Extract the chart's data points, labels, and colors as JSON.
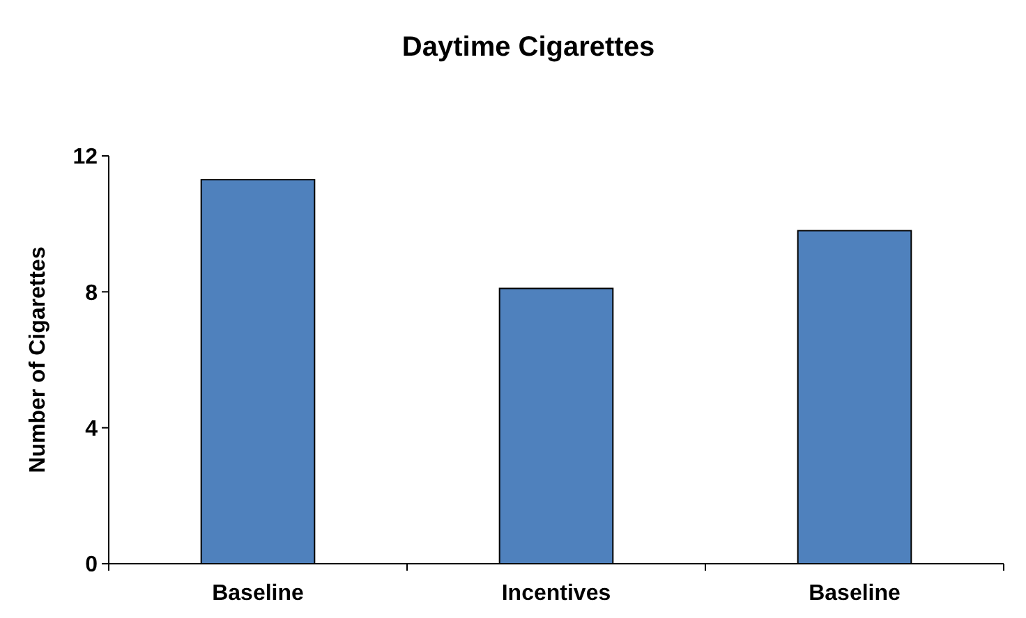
{
  "chart_data": {
    "type": "bar",
    "title": "Daytime Cigarettes",
    "ylabel": "Number of Cigarettes",
    "categories": [
      "Baseline",
      "Incentives",
      "Baseline"
    ],
    "values": [
      11.3,
      8.1,
      9.8
    ],
    "color": "#4f81bd",
    "ylim": [
      0,
      12
    ],
    "yticks": [
      0,
      4,
      8,
      12
    ],
    "grid": false
  }
}
